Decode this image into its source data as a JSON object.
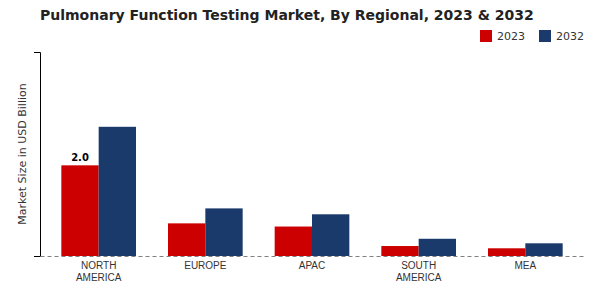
{
  "chart_data": {
    "type": "bar",
    "title": "Pulmonary Function Testing Market, By Regional, 2023 & 2032",
    "y_label": "Market Size in USD Billion",
    "categories": [
      "NORTH\nAMERICA",
      "EUROPE",
      "APAC",
      "SOUTH\nAMERICA",
      "MEA"
    ],
    "series": [
      {
        "name": "2023",
        "color": "#cc0000",
        "values": [
          2.0,
          0.72,
          0.65,
          0.22,
          0.17
        ]
      },
      {
        "name": "2032",
        "color": "#1a3a6b",
        "values": [
          2.85,
          1.05,
          0.92,
          0.38,
          0.28
        ]
      }
    ],
    "ylim": [
      0,
      4.5
    ],
    "tick_labels": "x",
    "grid": false,
    "legend": "upper right",
    "annotations": [
      {
        "text": "2.0",
        "category": "NORTH\nAMERICA",
        "series": "2023"
      }
    ]
  }
}
